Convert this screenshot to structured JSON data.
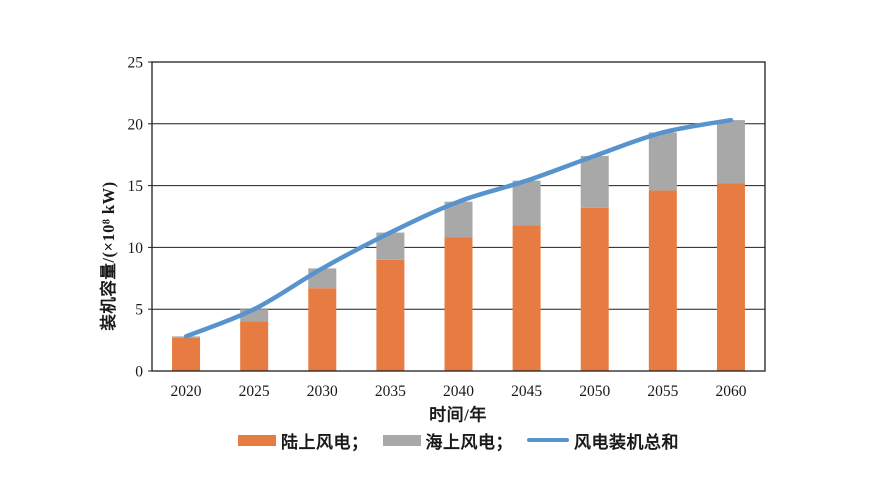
{
  "figure": {
    "background": "#ffffff",
    "axis_color": "#1f1f1f",
    "text_color": "#1a1a1a"
  },
  "chart_data": {
    "type": "bar",
    "subtype": "stacked-bars-with-total-line",
    "title": "",
    "categories": [
      "2020",
      "2025",
      "2030",
      "2035",
      "2040",
      "2045",
      "2050",
      "2055",
      "2060"
    ],
    "series": [
      {
        "name": "陆上风电",
        "kind": "bar",
        "color": "#E77C43",
        "values": [
          2.7,
          4.0,
          6.7,
          9.0,
          10.8,
          11.8,
          13.2,
          14.6,
          15.2
        ]
      },
      {
        "name": "海上风电",
        "kind": "bar",
        "color": "#A8A8A8",
        "values": [
          0.1,
          1.0,
          1.6,
          2.2,
          2.9,
          3.6,
          4.2,
          4.7,
          5.1
        ]
      },
      {
        "name": "风电装机总和",
        "kind": "line",
        "color": "#5794CE",
        "values": [
          2.8,
          5.0,
          8.3,
          11.2,
          13.7,
          15.4,
          17.4,
          19.3,
          20.3
        ]
      }
    ],
    "xlabel": "时间/年",
    "ylabel": "装机容量/(×10⁸ kW)",
    "ylim": [
      0,
      25
    ],
    "yticks": [
      0,
      5,
      10,
      15,
      20,
      25
    ],
    "grid": "horizontal",
    "legend_position": "bottom"
  },
  "legend": {
    "items": [
      {
        "label": "陆上风电；",
        "swatch": "bar"
      },
      {
        "label": "海上风电；",
        "swatch": "bar"
      },
      {
        "label": "风电装机总和",
        "swatch": "line"
      }
    ]
  }
}
